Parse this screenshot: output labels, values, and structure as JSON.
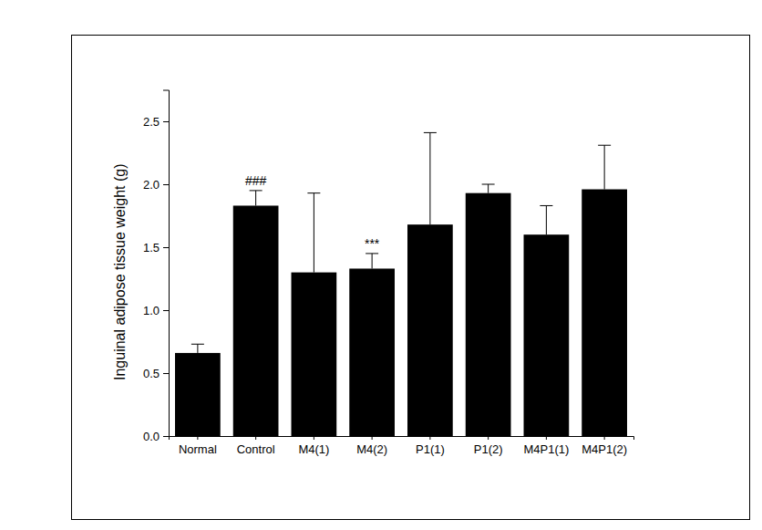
{
  "chart_data": {
    "type": "bar",
    "y_label": "Inguinal adipose tissue weight (g)",
    "categories": [
      "Normal",
      "Control",
      "M4(1)",
      "M4(2)",
      "P1(1)",
      "P1(2)",
      "M4P1(1)",
      "M4P1(2)"
    ],
    "values": [
      0.66,
      1.83,
      1.3,
      1.33,
      1.68,
      1.93,
      1.6,
      1.96
    ],
    "errors": [
      0.07,
      0.12,
      0.63,
      0.12,
      0.73,
      0.07,
      0.23,
      0.35
    ],
    "color": "#000000",
    "ylim": [
      0,
      2.75
    ],
    "yticks": [
      {
        "value": 0,
        "label": "0.0"
      },
      {
        "value": 0.5,
        "label": "0.5"
      },
      {
        "value": 1,
        "label": "1.0"
      },
      {
        "value": 1.5,
        "label": "1.5"
      },
      {
        "value": 2,
        "label": "2.0"
      },
      {
        "value": 2.5,
        "label": "2.5"
      }
    ],
    "annotations": [
      {
        "category": "Control",
        "text": "###"
      },
      {
        "category": "M4(2)",
        "text": "***"
      }
    ],
    "grid": false
  }
}
